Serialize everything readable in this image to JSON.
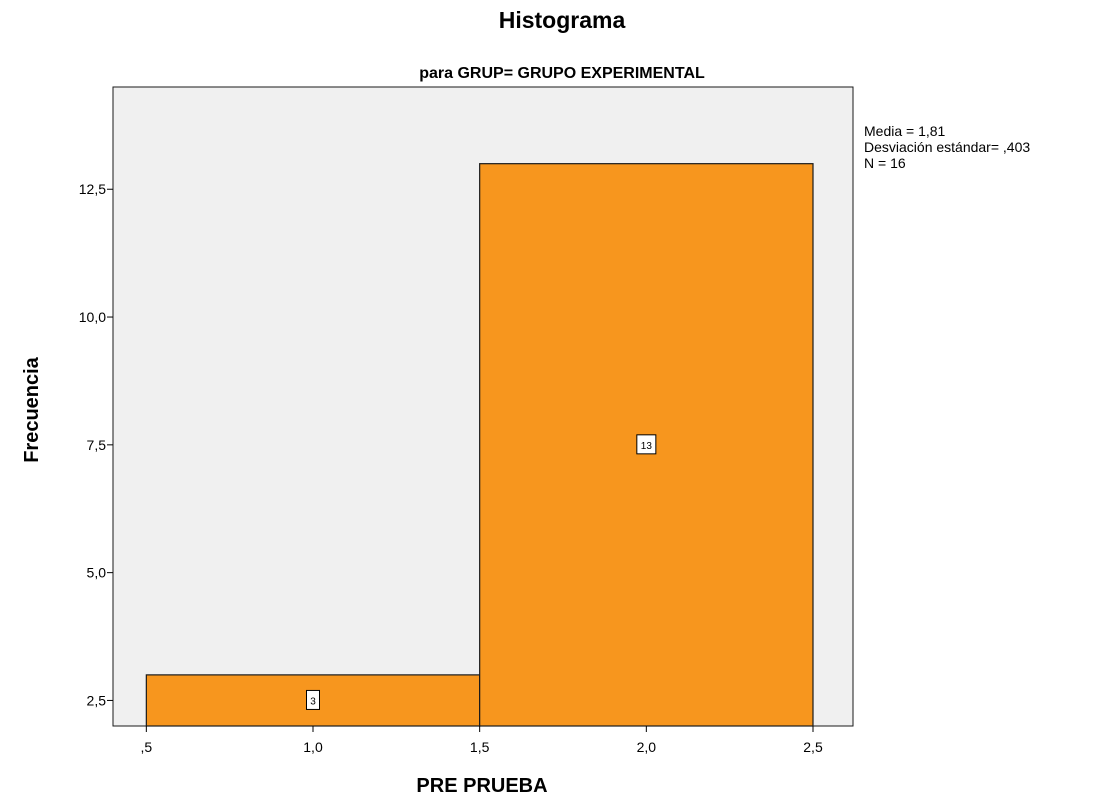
{
  "chart_data": {
    "type": "bar",
    "title": "Histograma",
    "subtitle": "para GRUP= GRUPO EXPERIMENTAL",
    "xlabel": "PRE PRUEBA",
    "ylabel": "Frecuencia",
    "bins": [
      {
        "start": 0.5,
        "end": 1.5,
        "value": 3,
        "label": "3"
      },
      {
        "start": 1.5,
        "end": 2.5,
        "value": 13,
        "label": "13"
      }
    ],
    "xlim": [
      0.4,
      2.62
    ],
    "ylim": [
      2.0,
      14.5
    ],
    "xticks": [
      {
        "value": 0.5,
        "label": ",5"
      },
      {
        "value": 1.0,
        "label": "1,0"
      },
      {
        "value": 1.5,
        "label": "1,5"
      },
      {
        "value": 2.0,
        "label": "2,0"
      },
      {
        "value": 2.5,
        "label": "2,5"
      }
    ],
    "yticks": [
      {
        "value": 2.5,
        "label": "2,5"
      },
      {
        "value": 5.0,
        "label": "5,0"
      },
      {
        "value": 7.5,
        "label": "7,5"
      },
      {
        "value": 10.0,
        "label": "10,0"
      },
      {
        "value": 12.5,
        "label": "12,5"
      }
    ],
    "stats": [
      "Media = 1,81",
      "Desviación estándar= ,403",
      "N = 16"
    ],
    "legend_position": "top-right",
    "grid": false,
    "colors": {
      "bar_fill": "#F7961E",
      "bar_stroke": "#1a1a1a",
      "plot_background": "#F0F0F0",
      "frame": "#1a1a1a"
    }
  }
}
